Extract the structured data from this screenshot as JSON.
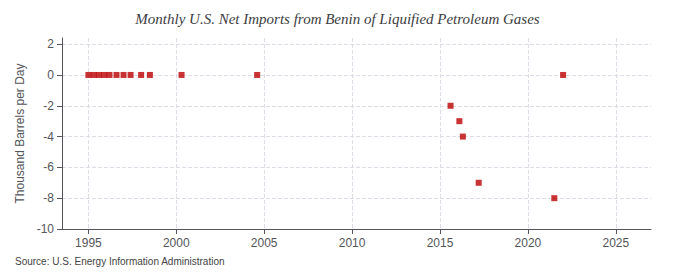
{
  "chart_data": {
    "type": "scatter",
    "title": "Monthly U.S. Net Imports from Benin of Liquified Petroleum Gases",
    "ylabel": "Thousand Barrels per Day",
    "annotations": [
      "Source: U.S. Energy Information Administration"
    ],
    "x": [
      1995.0,
      1995.3,
      1995.6,
      1995.9,
      1996.2,
      1996.6,
      1997.0,
      1997.4,
      1998.0,
      1998.5,
      2000.3,
      2004.6,
      2015.6,
      2016.1,
      2016.3,
      2017.2,
      2021.5,
      2022.0
    ],
    "values": [
      0,
      0,
      0,
      0,
      0,
      0,
      0,
      0,
      0,
      0,
      0,
      0,
      -2.0,
      -3.0,
      -4.0,
      -7.0,
      -8.0,
      0
    ],
    "color": "#bb0000",
    "marker": "square",
    "xlim": [
      1993.5,
      2027
    ],
    "ylim": [
      -10,
      2.4
    ],
    "xticks": [
      1995,
      2000,
      2005,
      2010,
      2015,
      2020,
      2025
    ],
    "yticks": [
      2,
      0,
      -2,
      -4,
      -6,
      -8,
      -10
    ],
    "grid": true
  }
}
